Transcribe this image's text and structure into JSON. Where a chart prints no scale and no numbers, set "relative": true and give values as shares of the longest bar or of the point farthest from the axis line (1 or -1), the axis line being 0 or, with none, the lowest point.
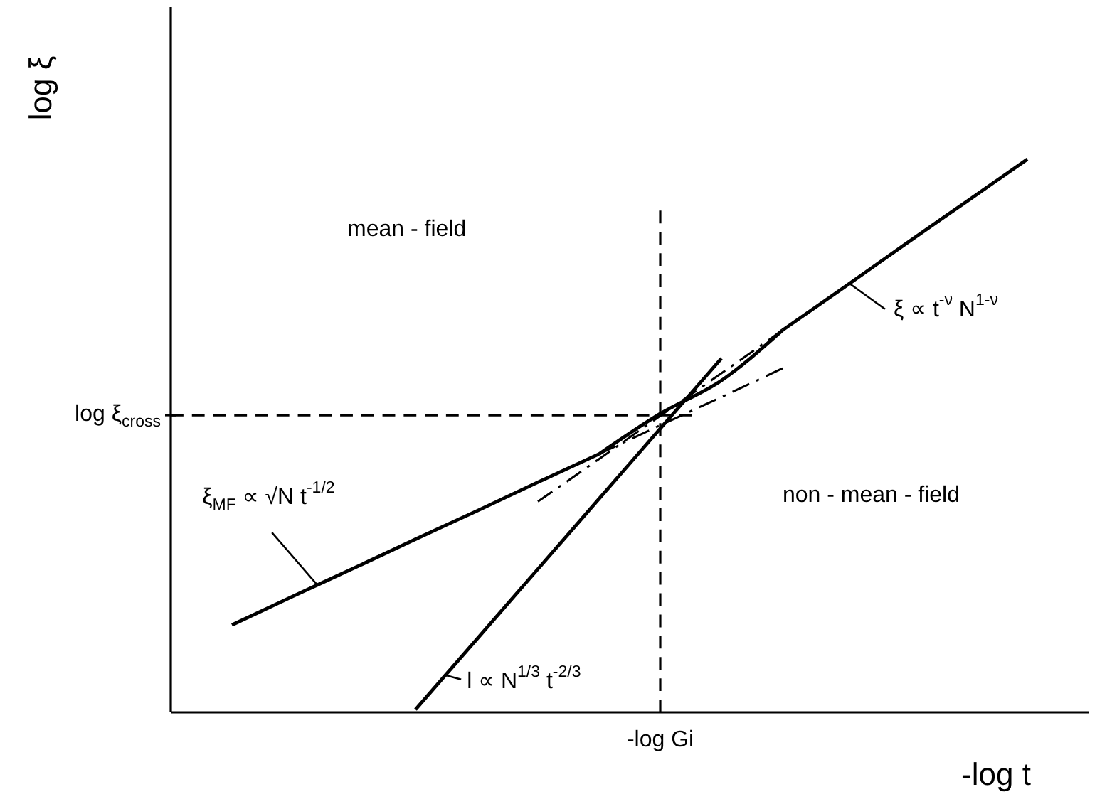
{
  "chart_data": {
    "type": "line",
    "relative": true,
    "xlabel": "-log t",
    "ylabel": "log ξ",
    "legend": "center",
    "categories": [
      null,
      null,
      null,
      null,
      null,
      null,
      null,
      null,
      null,
      null,
      null,
      null,
      null,
      null,
      null,
      null
    ],
    "series": [
      {
        "name": "ξ$_{MF}$ ∝ √N t$^{-1/2}$",
        "color": "#000000",
        "values": [
          null,
          0.158,
          0.21,
          0.261,
          0.313,
          0.364,
          0.416,
          0.467,
          null,
          null,
          null,
          null,
          null,
          null,
          null,
          null
        ]
      },
      {
        "color": "#000000",
        "line_style": "dashdot",
        "values": [
          null,
          null,
          null,
          null,
          null,
          null,
          null,
          0.467,
          0.519,
          0.57,
          0.622,
          null,
          null,
          null,
          null,
          null
        ]
      },
      {
        "name": "ξ ∝ t$^{-ν}$ N$^{1-ν}$",
        "color": "#000000",
        "values": [
          null,
          null,
          null,
          null,
          null,
          null,
          null,
          null,
          null,
          null,
          0.691,
          0.768,
          0.846,
          0.923,
          1.0,
          null
        ]
      },
      {
        "color": "#000000",
        "line_style": "dashdot",
        "values": [
          null,
          null,
          null,
          null,
          null,
          null,
          0.381,
          0.458,
          0.536,
          0.613,
          0.691,
          null,
          null,
          null,
          null,
          null
        ]
      },
      {
        "color": "#000000",
        "values": [
          null,
          null,
          null,
          null,
          null,
          null,
          null,
          0.467,
          0.54,
          0.6,
          0.691,
          null,
          null,
          null,
          null,
          null
        ]
      },
      {
        "name": "l ∝ N$^{1/3}$ t$^{-2/3}$",
        "color": "#000000",
        "values": [
          null,
          null,
          null,
          null,
          0.005,
          0.132,
          0.259,
          0.386,
          0.513,
          0.64,
          null,
          null,
          null,
          null,
          null,
          null
        ]
      }
    ],
    "ref_lines": [
      {
        "axis": "y",
        "value": 0.537,
        "label": "log ξ$_{cross}$",
        "line_style": "dashed",
        "color": "#000000"
      }
    ],
    "annotations": [
      "mean - field",
      "non - mean - field",
      "-log Gi"
    ]
  }
}
